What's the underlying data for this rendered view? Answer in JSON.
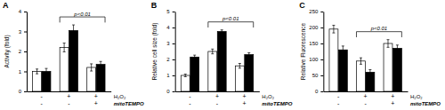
{
  "chart_data": [
    {
      "type": "bar",
      "title": "A",
      "ylabel": "Activity (fold)",
      "categories": [
        null,
        null,
        null
      ],
      "series": [
        {
          "color": "white",
          "values": [
            1.0,
            2.2,
            1.2
          ],
          "errors": [
            0.12,
            0.22,
            0.18
          ]
        },
        {
          "color": "black",
          "values": [
            1.0,
            3.05,
            1.35
          ],
          "errors": [
            0.15,
            0.28,
            0.15
          ]
        }
      ],
      "ylim": [
        0,
        4
      ],
      "yticks": [
        0,
        1,
        2,
        3,
        4
      ],
      "tick_labels": "y",
      "conditions": [
        {
          "label": "H₂O₂",
          "values": [
            "-",
            "+",
            "+"
          ]
        },
        {
          "label": "mitoTEMPO",
          "values": [
            "-",
            "-",
            "+"
          ]
        }
      ],
      "annotations": [
        {
          "text": "p<0.01",
          "groups": [
            1,
            2
          ]
        }
      ]
    },
    {
      "type": "bar",
      "title": "B",
      "ylabel": "Relative cell size (fold)",
      "categories": [
        null,
        null,
        null
      ],
      "series": [
        {
          "color": "white",
          "values": [
            1.0,
            2.5,
            1.6
          ],
          "errors": [
            0.08,
            0.15,
            0.15
          ]
        },
        {
          "color": "black",
          "values": [
            2.15,
            3.75,
            2.3
          ],
          "errors": [
            0.12,
            0.1,
            0.12
          ]
        }
      ],
      "ylim": [
        0,
        5
      ],
      "yticks": [
        0,
        1,
        2,
        3,
        4,
        5
      ],
      "tick_labels": "y",
      "conditions": [
        {
          "label": "H₂O₂",
          "values": [
            "-",
            "+",
            "+"
          ]
        },
        {
          "label": "mitoTEMPO",
          "values": [
            "-",
            "-",
            "+"
          ]
        }
      ],
      "annotations": [
        {
          "text": "p<0.01",
          "groups": [
            1,
            2
          ]
        }
      ]
    },
    {
      "type": "bar",
      "title": "C",
      "ylabel": "Relative Fluorescence",
      "categories": [
        null,
        null,
        null
      ],
      "series": [
        {
          "color": "white",
          "values": [
            195,
            95,
            150
          ],
          "errors": [
            12,
            10,
            12
          ]
        },
        {
          "color": "black",
          "values": [
            130,
            60,
            135
          ],
          "errors": [
            12,
            8,
            10
          ]
        }
      ],
      "ylim": [
        0,
        250
      ],
      "yticks": [
        0,
        50,
        100,
        150,
        200,
        250
      ],
      "tick_labels": "y",
      "conditions": [
        {
          "label": "H₂O₂",
          "values": [
            "-",
            "+",
            "+"
          ]
        },
        {
          "label": "mitoTEMPO",
          "values": [
            "-",
            "-",
            "+"
          ]
        }
      ],
      "annotations": [
        {
          "text": "p<0.01",
          "groups": [
            1,
            2
          ]
        }
      ]
    }
  ]
}
